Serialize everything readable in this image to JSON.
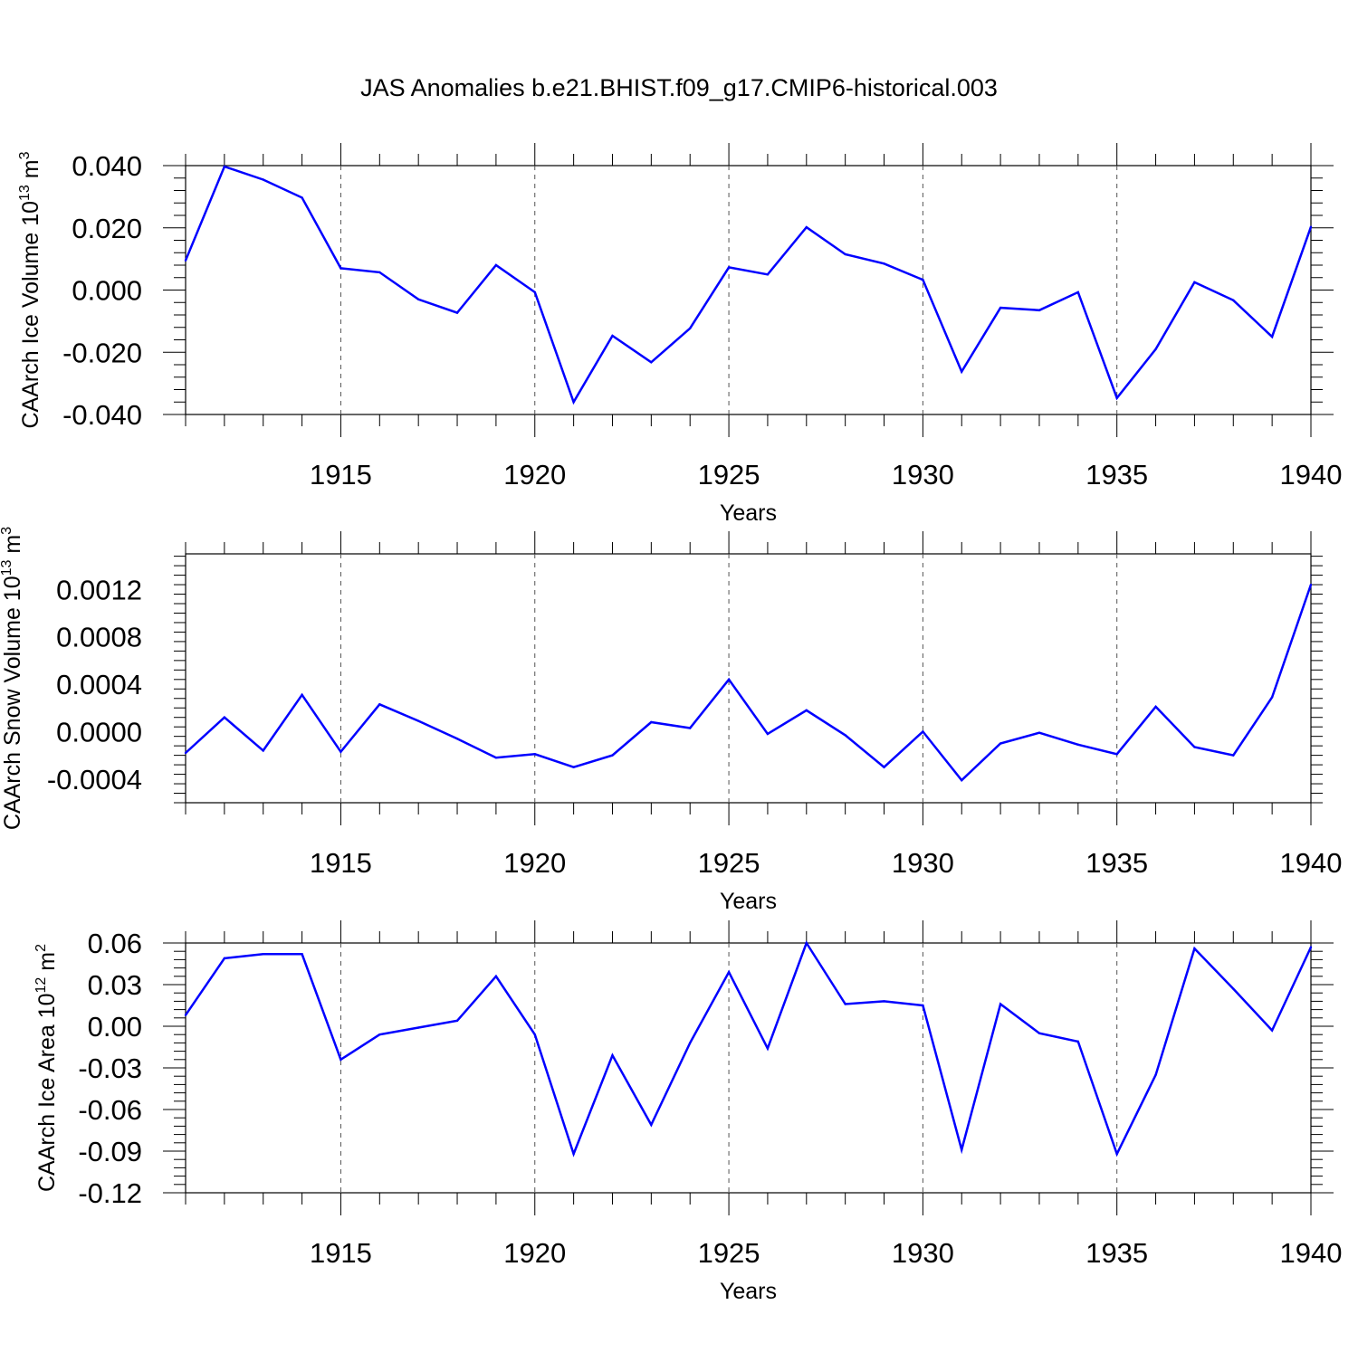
{
  "title": "JAS Anomalies b.e21.BHIST.f09_g17.CMIP6-historical.003",
  "line_color": "#0000ff",
  "chart_data": [
    {
      "type": "line",
      "ylabel": "CAArch Ice Volume 10",
      "ylabel_sup": "13",
      "ylabel_unit": " m",
      "ylabel_unit_sup": "3",
      "xlabel": "Years",
      "xlim": [
        1911,
        1940
      ],
      "ylim": [
        -0.04,
        0.04
      ],
      "x_ticks": [
        1915,
        1920,
        1925,
        1930,
        1935,
        1940
      ],
      "y_ticks": [
        0.04,
        0.02,
        0.0,
        -0.02,
        -0.04
      ],
      "y_tick_labels": [
        "0.040",
        "0.020",
        "0.000",
        "-0.020",
        "-0.040"
      ],
      "x": [
        1911,
        1912,
        1913,
        1914,
        1915,
        1916,
        1917,
        1918,
        1919,
        1920,
        1921,
        1922,
        1923,
        1924,
        1925,
        1926,
        1927,
        1928,
        1929,
        1930,
        1931,
        1932,
        1933,
        1934,
        1935,
        1936,
        1937,
        1938,
        1939,
        1940
      ],
      "values": [
        0.0095,
        0.0397,
        0.0355,
        0.0297,
        0.007,
        0.0057,
        -0.003,
        -0.0073,
        0.008,
        -0.0007,
        -0.036,
        -0.0147,
        -0.0232,
        -0.0123,
        0.0073,
        0.005,
        0.0202,
        0.0115,
        0.0085,
        0.0033,
        -0.0262,
        -0.0057,
        -0.0065,
        -0.0007,
        -0.0347,
        -0.019,
        0.0025,
        -0.0033,
        -0.015,
        0.0203
      ]
    },
    {
      "type": "line",
      "ylabel": "CAArch Snow Volume 10",
      "ylabel_sup": "13",
      "ylabel_unit": " m",
      "ylabel_unit_sup": "3",
      "xlabel": "Years",
      "xlim": [
        1911,
        1940
      ],
      "ylim": [
        -0.0006,
        0.0015
      ],
      "x_ticks": [
        1915,
        1920,
        1925,
        1930,
        1935,
        1940
      ],
      "y_ticks": [
        0.0012,
        0.0008,
        0.0004,
        0.0,
        -0.0004
      ],
      "y_tick_labels": [
        "0.0012",
        "0.0008",
        "0.0004",
        "0.0000",
        "-0.0004"
      ],
      "x": [
        1911,
        1912,
        1913,
        1914,
        1915,
        1916,
        1917,
        1918,
        1919,
        1920,
        1921,
        1922,
        1923,
        1924,
        1925,
        1926,
        1927,
        1928,
        1929,
        1930,
        1931,
        1932,
        1933,
        1934,
        1935,
        1936,
        1937,
        1938,
        1939,
        1940
      ],
      "values": [
        -0.00018,
        0.00012,
        -0.00016,
        0.00031,
        -0.00017,
        0.00023,
        9e-05,
        -6e-05,
        -0.00022,
        -0.00019,
        -0.0003,
        -0.0002,
        8e-05,
        3e-05,
        0.00044,
        -2e-05,
        0.00018,
        -3e-05,
        -0.0003,
        0.0,
        -0.00041,
        -0.0001,
        -1e-05,
        -0.00011,
        -0.00019,
        0.00021,
        -0.00013,
        -0.0002,
        0.00029,
        0.00124
      ]
    },
    {
      "type": "line",
      "ylabel": "CAArch Ice Area 10",
      "ylabel_sup": "12",
      "ylabel_unit": " m",
      "ylabel_unit_sup": "2",
      "xlabel": "Years",
      "xlim": [
        1911,
        1940
      ],
      "ylim": [
        -0.12,
        0.06
      ],
      "x_ticks": [
        1915,
        1920,
        1925,
        1930,
        1935,
        1940
      ],
      "y_ticks": [
        0.06,
        0.03,
        0.0,
        -0.03,
        -0.06,
        -0.09,
        -0.12
      ],
      "y_tick_labels": [
        "0.06",
        "0.03",
        "0.00",
        "-0.03",
        "-0.06",
        "-0.09",
        "-0.12"
      ],
      "x": [
        1911,
        1912,
        1913,
        1914,
        1915,
        1916,
        1917,
        1918,
        1919,
        1920,
        1921,
        1922,
        1923,
        1924,
        1925,
        1926,
        1927,
        1928,
        1929,
        1930,
        1931,
        1932,
        1933,
        1934,
        1935,
        1936,
        1937,
        1938,
        1939,
        1940
      ],
      "values": [
        0.008,
        0.049,
        0.052,
        0.052,
        -0.024,
        -0.006,
        -0.001,
        0.004,
        0.036,
        -0.006,
        -0.092,
        -0.021,
        -0.071,
        -0.012,
        0.039,
        -0.016,
        0.06,
        0.016,
        0.018,
        0.015,
        -0.089,
        0.016,
        -0.005,
        -0.011,
        -0.092,
        -0.035,
        0.056,
        0.027,
        -0.003,
        0.057
      ]
    }
  ]
}
